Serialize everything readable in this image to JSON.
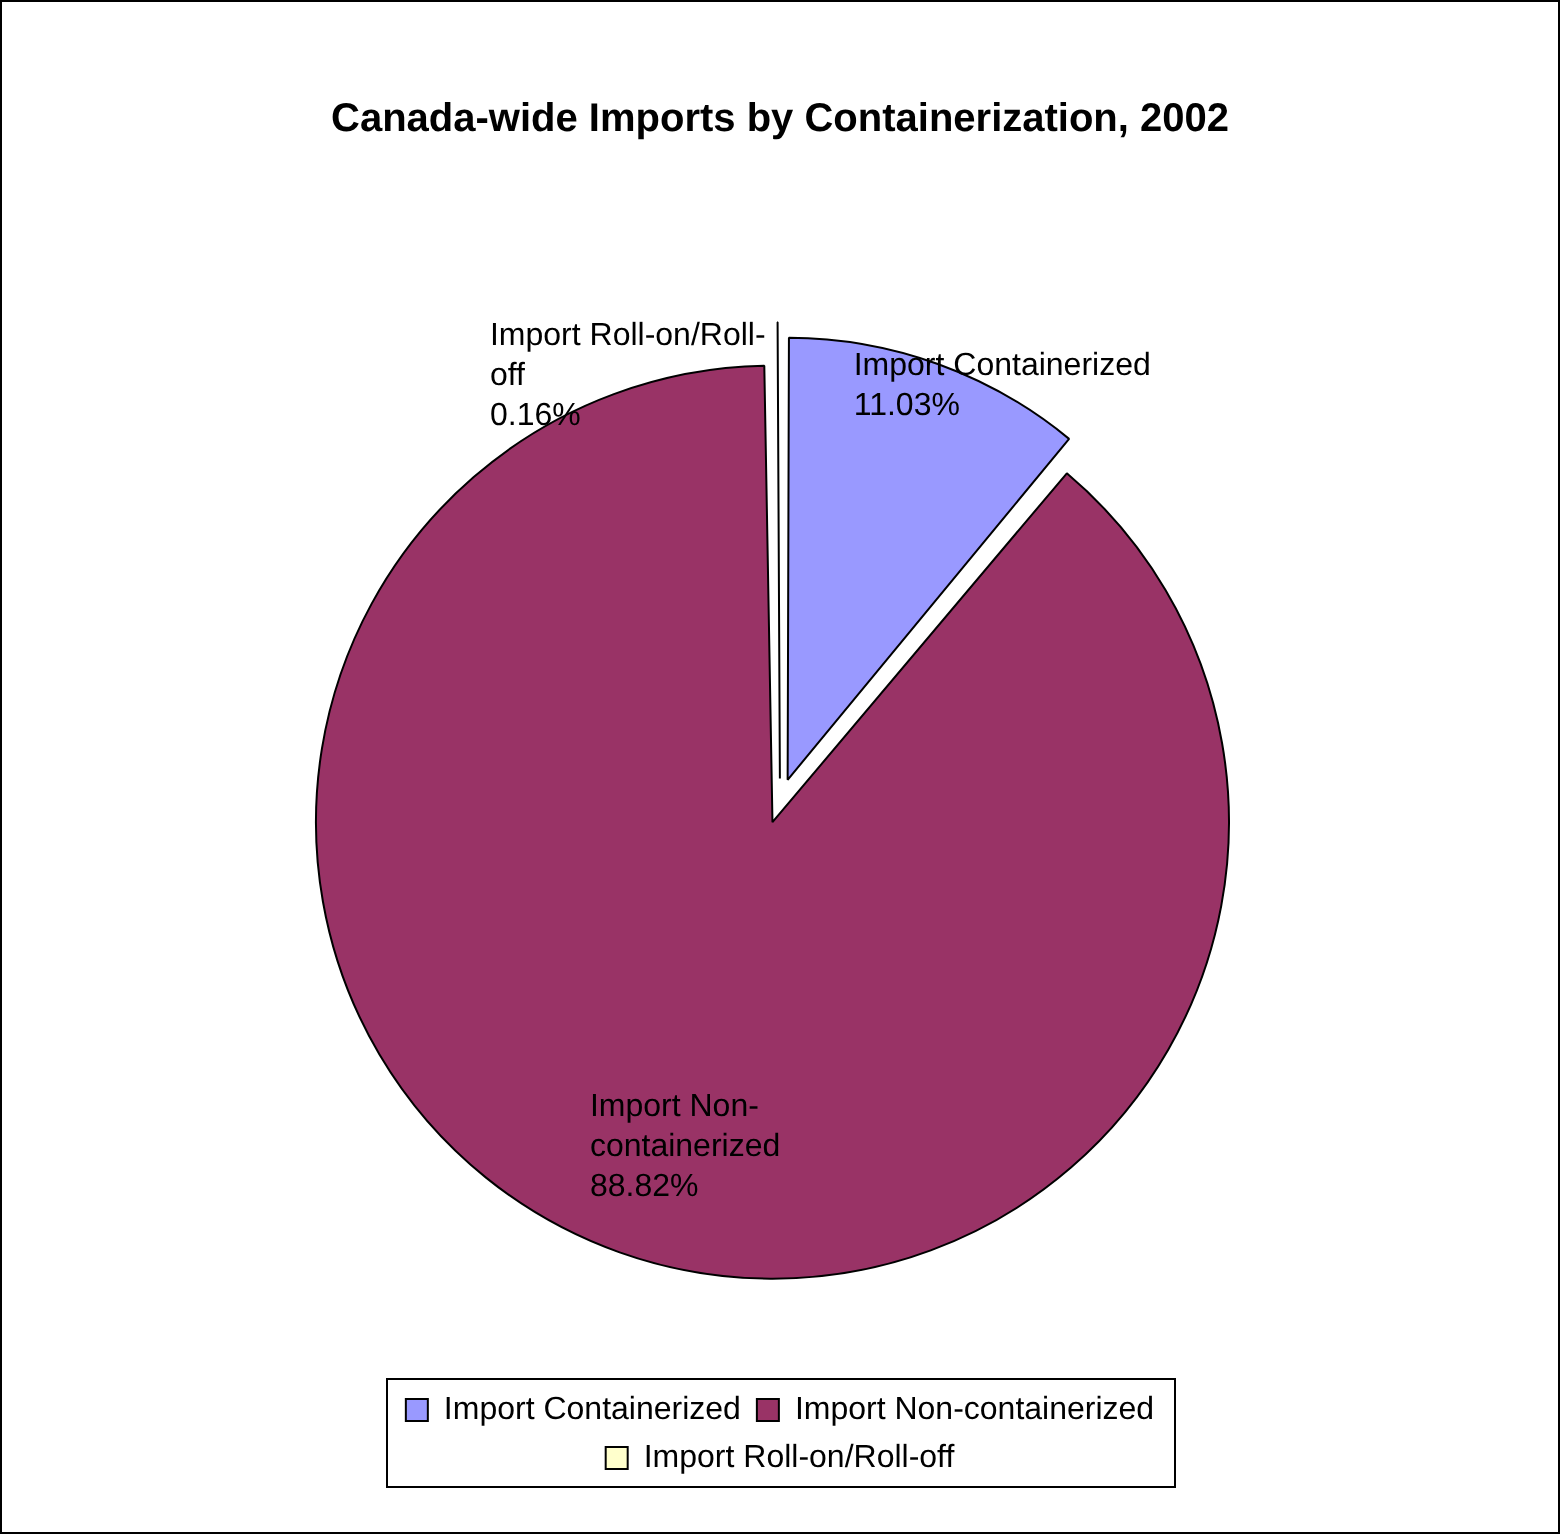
{
  "chart_data": {
    "type": "pie",
    "title": "Canada-wide Imports by Containerization, 2002",
    "categories": [
      "Import Containerized",
      "Import Non-containerized",
      "Import Roll-on/Roll-off"
    ],
    "values": [
      11.03,
      88.82,
      0.16
    ],
    "colors": [
      "#9999ff",
      "#993366",
      "#ffffcc"
    ],
    "value_labels": [
      "11.03%",
      "88.82%",
      "0.16%"
    ],
    "legend": "bottom"
  }
}
